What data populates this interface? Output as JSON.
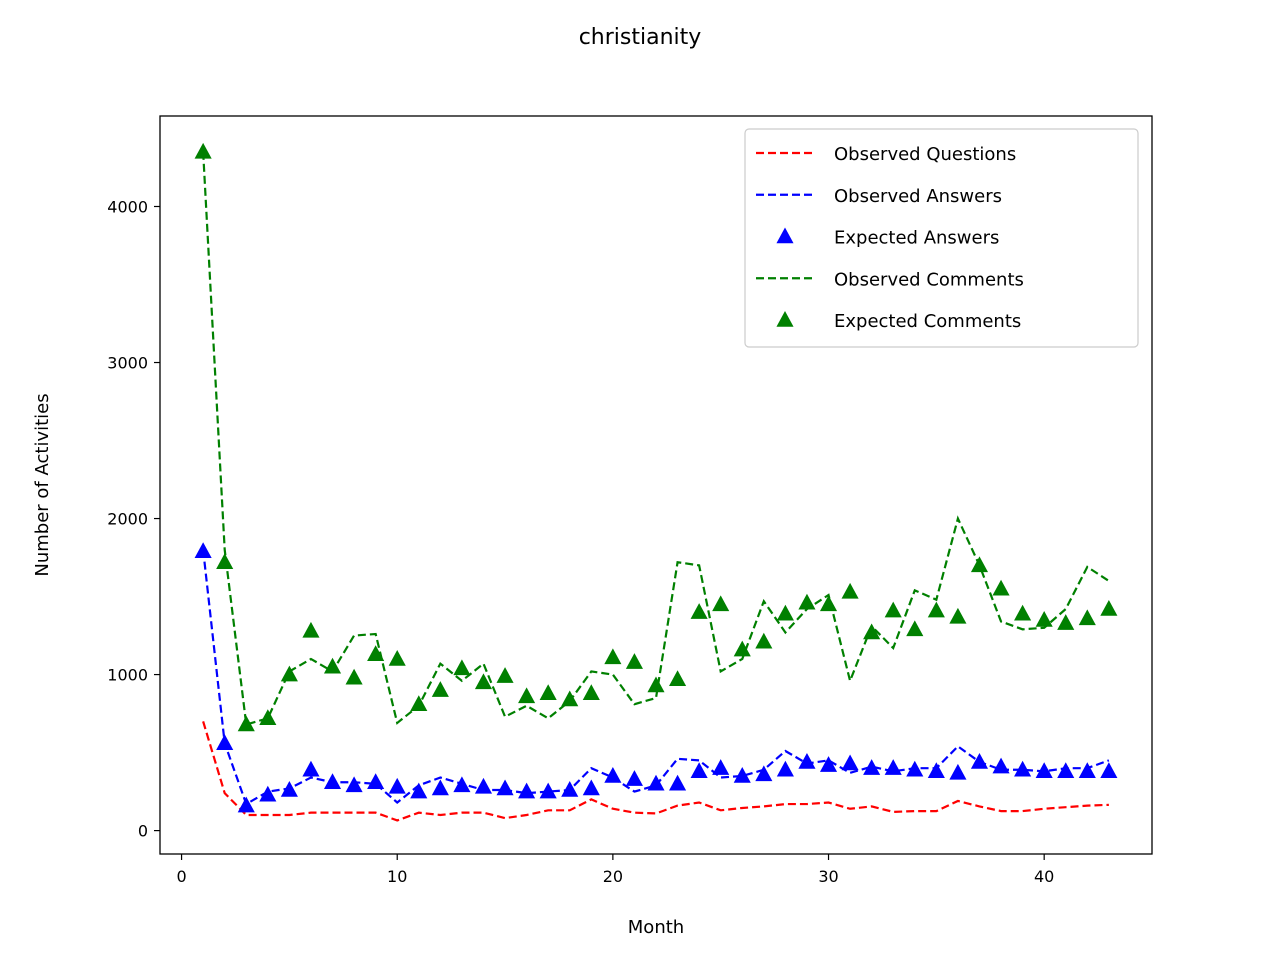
{
  "chart_data": {
    "type": "line",
    "title": "christianity",
    "xlabel": "Month",
    "ylabel": "Number of Activities",
    "xlim": [
      -1,
      45
    ],
    "ylim": [
      -150,
      4580
    ],
    "xticks": [
      0,
      10,
      20,
      30,
      40
    ],
    "yticks": [
      0,
      1000,
      2000,
      3000,
      4000
    ],
    "grid": false,
    "legend_position": "upper right",
    "x": [
      1,
      2,
      3,
      4,
      5,
      6,
      7,
      8,
      9,
      10,
      11,
      12,
      13,
      14,
      15,
      16,
      17,
      18,
      19,
      20,
      21,
      22,
      23,
      24,
      25,
      26,
      27,
      28,
      29,
      30,
      31,
      32,
      33,
      34,
      35,
      36,
      37,
      38,
      39,
      40,
      41,
      42,
      43
    ],
    "series": [
      {
        "name": "Observed Questions",
        "style": "dashed",
        "color": "#ff0000",
        "values": [
          700,
          240,
          100,
          100,
          100,
          115,
          115,
          115,
          115,
          65,
          115,
          100,
          115,
          115,
          80,
          100,
          130,
          130,
          200,
          140,
          115,
          110,
          160,
          180,
          130,
          145,
          155,
          170,
          170,
          180,
          140,
          155,
          120,
          125,
          125,
          190,
          155,
          125,
          125,
          140,
          150,
          160,
          165
        ]
      },
      {
        "name": "Observed Answers",
        "style": "dashed",
        "color": "#0000ff",
        "values": [
          1800,
          560,
          170,
          250,
          270,
          340,
          310,
          310,
          300,
          180,
          290,
          340,
          300,
          260,
          260,
          240,
          250,
          260,
          400,
          340,
          250,
          290,
          460,
          450,
          340,
          350,
          390,
          510,
          430,
          450,
          370,
          410,
          380,
          400,
          400,
          540,
          440,
          390,
          390,
          380,
          400,
          400,
          450
        ]
      },
      {
        "name": "Expected Answers",
        "style": "marker",
        "color": "#0000ff",
        "values": [
          1790,
          560,
          160,
          230,
          260,
          390,
          310,
          290,
          310,
          280,
          250,
          270,
          290,
          280,
          270,
          250,
          250,
          260,
          270,
          350,
          330,
          300,
          300,
          380,
          400,
          350,
          360,
          390,
          440,
          420,
          430,
          400,
          400,
          390,
          380,
          370,
          440,
          410,
          390,
          380,
          380,
          380,
          380
        ]
      },
      {
        "name": "Observed Comments",
        "style": "dashed",
        "color": "#008000",
        "values": [
          4350,
          1800,
          680,
          720,
          1020,
          1100,
          1020,
          1250,
          1260,
          690,
          800,
          1070,
          960,
          1070,
          730,
          800,
          720,
          830,
          1020,
          1000,
          810,
          850,
          1720,
          1700,
          1020,
          1100,
          1470,
          1270,
          1420,
          1510,
          960,
          1310,
          1170,
          1540,
          1480,
          2000,
          1700,
          1340,
          1290,
          1300,
          1420,
          1690,
          1600
        ]
      },
      {
        "name": "Expected Comments",
        "style": "marker",
        "color": "#008000",
        "values": [
          4350,
          1720,
          680,
          720,
          1000,
          1280,
          1050,
          980,
          1130,
          1100,
          810,
          900,
          1040,
          950,
          990,
          860,
          880,
          840,
          880,
          1110,
          1080,
          930,
          970,
          1400,
          1450,
          1160,
          1210,
          1390,
          1460,
          1450,
          1530,
          1270,
          1410,
          1290,
          1410,
          1370,
          1700,
          1550,
          1390,
          1350,
          1330,
          1360,
          1420
        ]
      }
    ]
  }
}
